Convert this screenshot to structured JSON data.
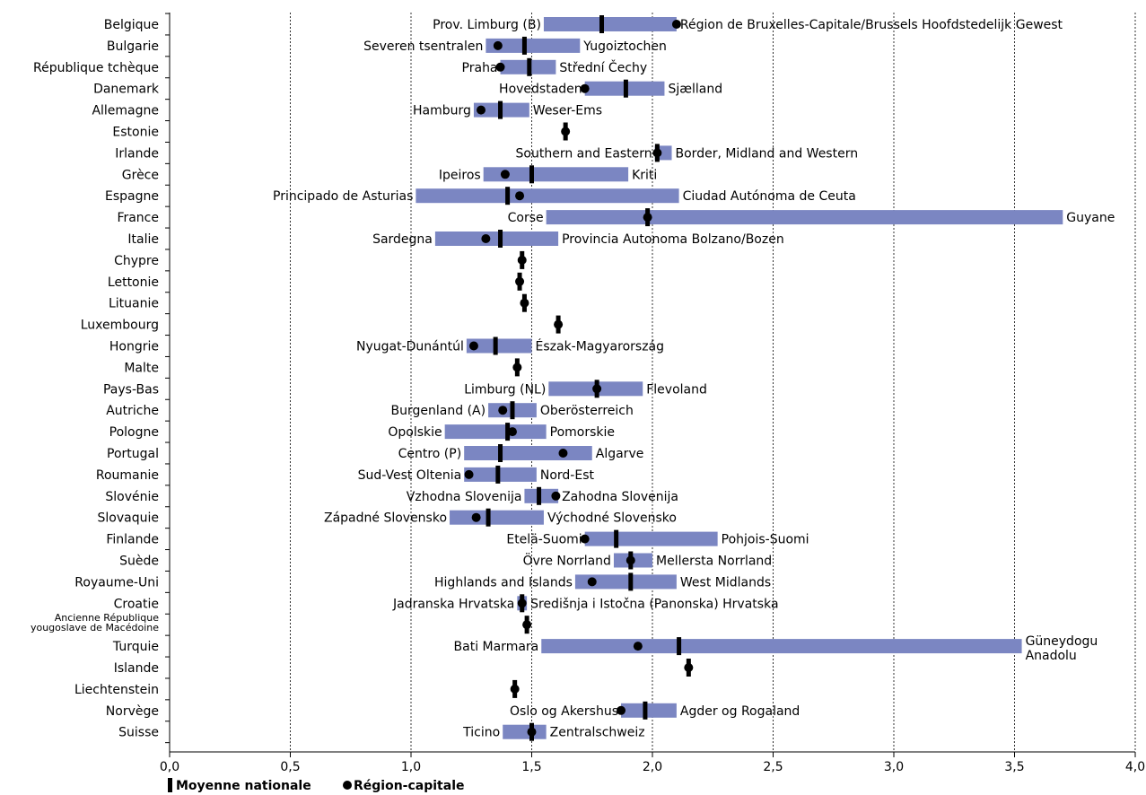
{
  "chart_data": {
    "type": "range-dot",
    "title": "",
    "xlabel": "",
    "ylabel": "",
    "xlim": [
      0,
      4
    ],
    "x_ticks": [
      "0,0",
      "0,5",
      "1,0",
      "1,5",
      "2,0",
      "2,5",
      "3,0",
      "3,5",
      "4,0"
    ],
    "grid": "vertical dotted",
    "legend": {
      "placement": "bottom-left",
      "mean_label": "Moyenne nationale",
      "capital_label": "Région-capitale"
    },
    "colors": {
      "bar": "#7b86c2",
      "marker": "#000000"
    },
    "rows": [
      {
        "country": "Belgique",
        "min": 1.55,
        "max": 2.1,
        "mean": 1.79,
        "capital": 2.1,
        "min_label": "Prov. Limburg (B)",
        "max_label": "Région de Bruxelles-Capitale/Brussels Hoofdstedelijk Gewest"
      },
      {
        "country": "Bulgarie",
        "min": 1.31,
        "max": 1.7,
        "mean": 1.47,
        "capital": 1.36,
        "min_label": "Severen tsentralen",
        "max_label": "Yugoiztochen"
      },
      {
        "country": "République tchèque",
        "min": 1.37,
        "max": 1.6,
        "mean": 1.49,
        "capital": 1.37,
        "min_label": "Praha",
        "max_label": "Střední Čechy"
      },
      {
        "country": "Danemark",
        "min": 1.72,
        "max": 2.05,
        "mean": 1.89,
        "capital": 1.72,
        "min_label": "Hovedstaden",
        "max_label": "Sjælland"
      },
      {
        "country": "Allemagne",
        "min": 1.26,
        "max": 1.49,
        "mean": 1.37,
        "capital": 1.29,
        "min_label": "Hamburg",
        "max_label": "Weser-Ems"
      },
      {
        "country": "Estonie",
        "min": null,
        "max": null,
        "mean": 1.64,
        "capital": 1.64,
        "min_label": "",
        "max_label": ""
      },
      {
        "country": "Irlande",
        "min": 2.01,
        "max": 2.08,
        "mean": 2.02,
        "capital": 2.02,
        "min_label": "Southern and Eastern",
        "max_label": "Border, Midland and Western"
      },
      {
        "country": "Grèce",
        "min": 1.3,
        "max": 1.9,
        "mean": 1.5,
        "capital": 1.39,
        "min_label": "Ipeiros",
        "max_label": "Kriti"
      },
      {
        "country": "Espagne",
        "min": 1.02,
        "max": 2.11,
        "mean": 1.4,
        "capital": 1.45,
        "min_label": "Principado de Asturias",
        "max_label": "Ciudad Autónoma de Ceuta"
      },
      {
        "country": "France",
        "min": 1.56,
        "max": 3.7,
        "mean": 1.98,
        "capital": 1.98,
        "min_label": "Corse",
        "max_label": "Guyane"
      },
      {
        "country": "Italie",
        "min": 1.1,
        "max": 1.61,
        "mean": 1.37,
        "capital": 1.31,
        "min_label": "Sardegna",
        "max_label": "Provincia Autonoma Bolzano/Bozen"
      },
      {
        "country": "Chypre",
        "min": null,
        "max": null,
        "mean": 1.46,
        "capital": 1.46,
        "min_label": "",
        "max_label": ""
      },
      {
        "country": "Lettonie",
        "min": null,
        "max": null,
        "mean": 1.45,
        "capital": 1.45,
        "min_label": "",
        "max_label": ""
      },
      {
        "country": "Lituanie",
        "min": null,
        "max": null,
        "mean": 1.47,
        "capital": 1.47,
        "min_label": "",
        "max_label": ""
      },
      {
        "country": "Luxembourg",
        "min": null,
        "max": null,
        "mean": 1.61,
        "capital": 1.61,
        "min_label": "",
        "max_label": ""
      },
      {
        "country": "Hongrie",
        "min": 1.23,
        "max": 1.5,
        "mean": 1.35,
        "capital": 1.26,
        "min_label": "Nyugat-Dunántúl",
        "max_label": "Észak-Magyarország"
      },
      {
        "country": "Malte",
        "min": null,
        "max": null,
        "mean": 1.44,
        "capital": 1.44,
        "min_label": "",
        "max_label": ""
      },
      {
        "country": "Pays-Bas",
        "min": 1.57,
        "max": 1.96,
        "mean": 1.77,
        "capital": 1.77,
        "min_label": "Limburg (NL)",
        "max_label": "Flevoland"
      },
      {
        "country": "Autriche",
        "min": 1.32,
        "max": 1.52,
        "mean": 1.42,
        "capital": 1.38,
        "min_label": "Burgenland (A)",
        "max_label": "Oberösterreich"
      },
      {
        "country": "Pologne",
        "min": 1.14,
        "max": 1.56,
        "mean": 1.4,
        "capital": 1.42,
        "min_label": "Opolskie",
        "max_label": "Pomorskie"
      },
      {
        "country": "Portugal",
        "min": 1.22,
        "max": 1.75,
        "mean": 1.37,
        "capital": 1.63,
        "min_label": "Centro (P)",
        "max_label": "Algarve"
      },
      {
        "country": "Roumanie",
        "min": 1.22,
        "max": 1.52,
        "mean": 1.36,
        "capital": 1.24,
        "min_label": "Sud-Vest Oltenia",
        "max_label": "Nord-Est"
      },
      {
        "country": "Slovénie",
        "min": 1.47,
        "max": 1.61,
        "mean": 1.53,
        "capital": 1.6,
        "min_label": "Vzhodna Slovenija",
        "max_label": "Zahodna Slovenija"
      },
      {
        "country": "Slovaquie",
        "min": 1.16,
        "max": 1.55,
        "mean": 1.32,
        "capital": 1.27,
        "min_label": "Západné Slovensko",
        "max_label": "Východné Slovensko"
      },
      {
        "country": "Finlande",
        "min": 1.72,
        "max": 2.27,
        "mean": 1.85,
        "capital": 1.72,
        "min_label": "Etelä-Suomi",
        "max_label": "Pohjois-Suomi"
      },
      {
        "country": "Suède",
        "min": 1.84,
        "max": 2.0,
        "mean": 1.91,
        "capital": 1.91,
        "min_label": "Övre Norrland",
        "max_label": "Mellersta Norrland"
      },
      {
        "country": "Royaume-Uni",
        "min": 1.68,
        "max": 2.1,
        "mean": 1.91,
        "capital": 1.75,
        "min_label": "Highlands and Islands",
        "max_label": "West Midlands"
      },
      {
        "country": "Croatie",
        "min": 1.44,
        "max": 1.48,
        "mean": 1.46,
        "capital": 1.46,
        "min_label": "Jadranska Hrvatska",
        "max_label": "Središnja i Istočna (Panonska) Hrvatska"
      },
      {
        "country": "Ancienne République yougoslave de Macédoine",
        "min": null,
        "max": null,
        "mean": 1.48,
        "capital": 1.48,
        "min_label": "",
        "max_label": ""
      },
      {
        "country": "Turquie",
        "min": 1.54,
        "max": 3.53,
        "mean": 2.11,
        "capital": 1.94,
        "min_label": "Bati Marmara",
        "max_label": "Güneydogu Anadolu"
      },
      {
        "country": "Islande",
        "min": null,
        "max": null,
        "mean": 2.15,
        "capital": 2.15,
        "min_label": "",
        "max_label": ""
      },
      {
        "country": "Liechtenstein",
        "min": null,
        "max": null,
        "mean": 1.43,
        "capital": 1.43,
        "min_label": "",
        "max_label": ""
      },
      {
        "country": "Norvège",
        "min": 1.87,
        "max": 2.1,
        "mean": 1.97,
        "capital": 1.87,
        "min_label": "Oslo og Akershus",
        "max_label": "Agder og Rogaland"
      },
      {
        "country": "Suisse",
        "min": 1.38,
        "max": 1.56,
        "mean": 1.5,
        "capital": 1.5,
        "min_label": "Ticino",
        "max_label": "Zentralschweiz"
      }
    ]
  }
}
